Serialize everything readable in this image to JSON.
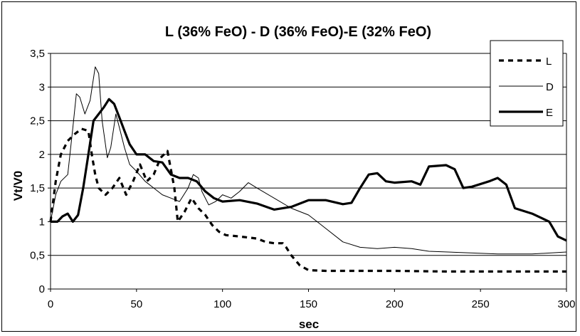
{
  "chart_data": {
    "type": "line",
    "title": "L (36% FeO) - D (36% FeO)-E (32% FeO)",
    "xlabel": "sec",
    "ylabel": "Vt/V0",
    "xlim": [
      0,
      300
    ],
    "ylim": [
      0,
      3.5
    ],
    "xticks": [
      "0",
      "50",
      "100",
      "150",
      "200",
      "250",
      "300"
    ],
    "yticks": [
      "0",
      "0,5",
      "1",
      "1,5",
      "2",
      "2,5",
      "3",
      "3,5"
    ],
    "grid": "horizontal",
    "legend_position": "top-right",
    "series": [
      {
        "name": "L",
        "style": "dashed",
        "color": "#000000",
        "x": [
          0,
          3,
          6,
          10,
          14,
          18,
          22,
          24,
          26,
          28,
          32,
          36,
          40,
          44,
          48,
          52,
          56,
          60,
          64,
          68,
          72,
          74,
          78,
          82,
          86,
          90,
          94,
          98,
          102,
          110,
          120,
          125,
          130,
          135,
          137,
          140,
          145,
          150,
          160,
          175,
          200,
          230,
          260,
          290,
          300
        ],
        "y": [
          1.0,
          1.6,
          2.0,
          2.2,
          2.3,
          2.38,
          2.35,
          2.0,
          1.7,
          1.5,
          1.4,
          1.5,
          1.65,
          1.4,
          1.6,
          1.85,
          1.6,
          1.7,
          1.95,
          2.05,
          1.5,
          1.0,
          1.15,
          1.35,
          1.2,
          1.1,
          0.95,
          0.85,
          0.8,
          0.78,
          0.75,
          0.7,
          0.68,
          0.68,
          0.62,
          0.5,
          0.35,
          0.28,
          0.27,
          0.27,
          0.27,
          0.26,
          0.26,
          0.26,
          0.26
        ]
      },
      {
        "name": "D",
        "style": "thin",
        "color": "#000000",
        "x": [
          0,
          3,
          6,
          10,
          13,
          15,
          17,
          20,
          23,
          26,
          28,
          30,
          33,
          35,
          38,
          40,
          43,
          46,
          50,
          55,
          60,
          65,
          70,
          75,
          80,
          83,
          86,
          88,
          92,
          96,
          100,
          105,
          110,
          115,
          120,
          130,
          140,
          150,
          155,
          160,
          170,
          180,
          190,
          200,
          210,
          220,
          240,
          260,
          280,
          300
        ],
        "y": [
          1.0,
          1.4,
          1.6,
          1.7,
          2.4,
          2.9,
          2.85,
          2.6,
          2.8,
          3.3,
          3.2,
          2.5,
          1.95,
          2.1,
          2.6,
          2.4,
          2.1,
          1.85,
          1.75,
          1.6,
          1.5,
          1.4,
          1.35,
          1.3,
          1.5,
          1.7,
          1.65,
          1.45,
          1.25,
          1.3,
          1.4,
          1.35,
          1.45,
          1.58,
          1.5,
          1.35,
          1.2,
          1.1,
          1.0,
          0.9,
          0.7,
          0.62,
          0.6,
          0.62,
          0.6,
          0.56,
          0.54,
          0.52,
          0.52,
          0.55
        ]
      },
      {
        "name": "E",
        "style": "thick",
        "color": "#000000",
        "x": [
          0,
          4,
          7,
          10,
          13,
          16,
          19,
          22,
          25,
          28,
          31,
          34,
          37,
          40,
          43,
          46,
          50,
          55,
          60,
          65,
          70,
          75,
          80,
          85,
          90,
          95,
          100,
          110,
          120,
          130,
          140,
          150,
          160,
          170,
          175,
          180,
          185,
          190,
          195,
          200,
          210,
          215,
          220,
          230,
          235,
          240,
          245,
          255,
          260,
          265,
          270,
          280,
          290,
          295,
          300
        ],
        "y": [
          1.0,
          1.0,
          1.08,
          1.12,
          1.0,
          1.1,
          1.5,
          2.0,
          2.5,
          2.6,
          2.7,
          2.82,
          2.75,
          2.55,
          2.35,
          2.15,
          2.0,
          2.0,
          1.9,
          1.88,
          1.7,
          1.65,
          1.65,
          1.6,
          1.45,
          1.35,
          1.3,
          1.32,
          1.27,
          1.18,
          1.22,
          1.32,
          1.32,
          1.26,
          1.28,
          1.5,
          1.7,
          1.72,
          1.6,
          1.58,
          1.6,
          1.55,
          1.82,
          1.84,
          1.78,
          1.5,
          1.52,
          1.6,
          1.65,
          1.55,
          1.2,
          1.12,
          1.0,
          0.78,
          0.72
        ]
      }
    ]
  }
}
